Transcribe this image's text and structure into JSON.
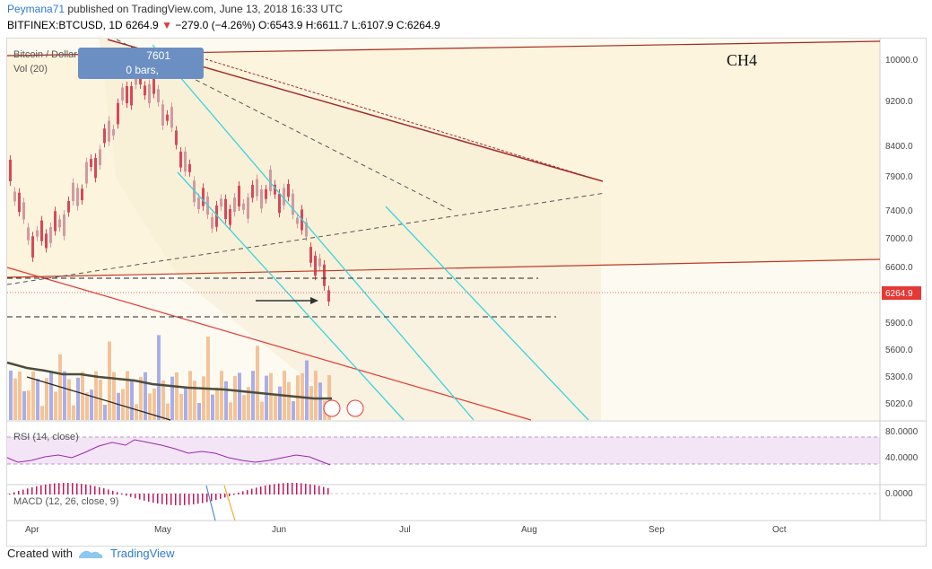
{
  "header": {
    "user": "Peymana71",
    "published_text": " published on TradingView.com, June 13, 2018 16:33 UTC",
    "symbol_line_prefix": "BITFINEX:BTCUSD, 1D ",
    "last": "6264.9",
    "arrow": "▼",
    "change": " −279.0 (−4.26%)",
    "ohlc": " O:6543.9 H:6611.7 L:6107.9 C:6264.9"
  },
  "legend": {
    "symbol_title": "Bitcoin / Dollar",
    "volume_label": "Vol (20)",
    "tooltip_line1": "7601",
    "tooltip_line2": "0 bars,",
    "annotation_text": "CH4"
  },
  "price_axis": {
    "ticks": [
      "10000.0",
      "9200.0",
      "8400.0",
      "7900.0",
      "7400.0",
      "7000.0",
      "6600.0",
      "5900.0",
      "5600.0",
      "5300.0",
      "5020.0"
    ],
    "last_price_tag": "6264.9",
    "last_price_color": "#e53935"
  },
  "rsi_panel": {
    "label": "RSI (14, close)",
    "ticks": [
      "80.0000",
      "40.0000"
    ]
  },
  "macd_panel": {
    "label": "MACD (12, 26, close, 9)",
    "ticks": [
      "0.0000"
    ]
  },
  "time_axis": {
    "labels": [
      "Apr",
      "May",
      "Jun",
      "Jul",
      "Aug",
      "Sep",
      "Oct"
    ]
  },
  "footer": {
    "created_with": "Created with",
    "brand": "TradingView"
  },
  "colors": {
    "up": "#d29aa0",
    "down": "#d8485a",
    "cyan": "#38d4e0",
    "trend": "#a52a2a",
    "rsi": "#9c27b0"
  },
  "icons": [
    "tradingview-logo-icon",
    "flag-icon"
  ]
}
